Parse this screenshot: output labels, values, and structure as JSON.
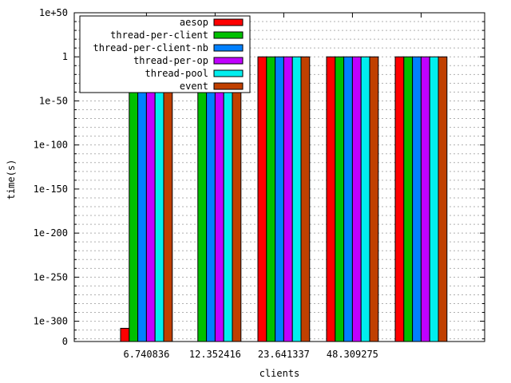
{
  "chart_data": {
    "type": "bar",
    "scale": "log",
    "xlabel": "clients",
    "ylabel": "time(s)",
    "ylim_exponent": [
      -323,
      50
    ],
    "yticks": [
      {
        "exp": 50,
        "label": "1e+50"
      },
      {
        "exp": 0,
        "label": "1"
      },
      {
        "exp": -50,
        "label": "1e-50"
      },
      {
        "exp": -100,
        "label": "1e-100"
      },
      {
        "exp": -150,
        "label": "1e-150"
      },
      {
        "exp": -200,
        "label": "1e-200"
      },
      {
        "exp": -250,
        "label": "1e-250"
      },
      {
        "exp": -300,
        "label": "1e-300"
      },
      {
        "exp": -323,
        "label": "0"
      }
    ],
    "categories": [
      "6.740836",
      "12.352416",
      "23.641337",
      "48.309275",
      ""
    ],
    "grid": true,
    "legend_position": "top-left",
    "series": [
      {
        "name": "aesop",
        "color": "#ff0000",
        "exponents": [
          -308,
          null,
          0,
          0,
          0
        ]
      },
      {
        "name": "thread-per-client",
        "color": "#00c000",
        "exponents": [
          0,
          0,
          0,
          0,
          0
        ]
      },
      {
        "name": "thread-per-client-nb",
        "color": "#0080ff",
        "exponents": [
          0,
          0,
          0,
          0,
          0
        ]
      },
      {
        "name": "thread-per-op",
        "color": "#c000ff",
        "exponents": [
          0,
          0,
          0,
          0,
          0
        ]
      },
      {
        "name": "thread-pool",
        "color": "#00eeee",
        "exponents": [
          0,
          0,
          0,
          0,
          0
        ]
      },
      {
        "name": "event",
        "color": "#c04000",
        "exponents": [
          0,
          0,
          0,
          0,
          0
        ]
      }
    ]
  }
}
